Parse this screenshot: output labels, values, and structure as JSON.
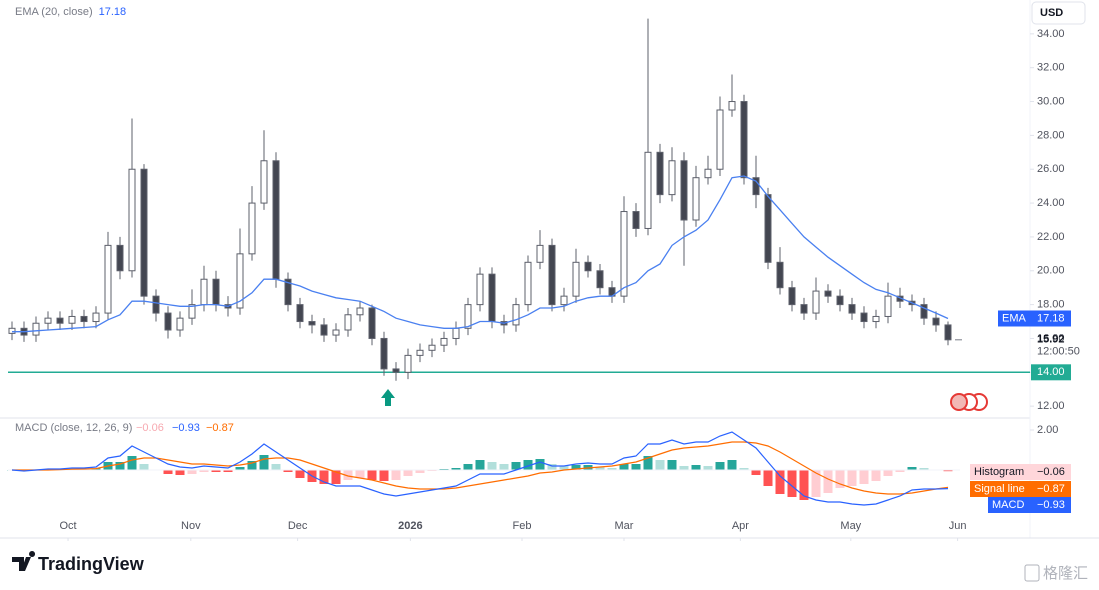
{
  "chart_data": {
    "type": "candlestick",
    "currency": "USD",
    "countdown": "12:00:50",
    "grid": false,
    "xlim": [
      0,
      78
    ],
    "xticks": [
      {
        "value": 4.67,
        "label": "Oct"
      },
      {
        "value": 14.9,
        "label": "Nov"
      },
      {
        "value": 23.8,
        "label": "Dec"
      },
      {
        "value": 33.2,
        "label": "2026"
      },
      {
        "value": 42.5,
        "label": "Feb"
      },
      {
        "value": 51,
        "label": "Mar"
      },
      {
        "value": 60.7,
        "label": "Apr"
      },
      {
        "value": 69.9,
        "label": "May"
      },
      {
        "value": 78.8,
        "label": "Jun"
      }
    ],
    "ylim": [
      11.3,
      36
    ],
    "yticks": [
      {
        "value": 12,
        "label": "12.00"
      },
      {
        "value": 14,
        "label": "14.00"
      },
      {
        "value": 16,
        "label": "16.00"
      },
      {
        "value": 18,
        "label": "18.00"
      },
      {
        "value": 20,
        "label": "20.00"
      },
      {
        "value": 22,
        "label": "22.00"
      },
      {
        "value": 24,
        "label": "24.00"
      },
      {
        "value": 26,
        "label": "26.00"
      },
      {
        "value": 28,
        "label": "28.00"
      },
      {
        "value": 30,
        "label": "30.00"
      },
      {
        "value": 32,
        "label": "32.00"
      },
      {
        "value": 34,
        "label": "34.00"
      }
    ],
    "up_color": "#ffffff",
    "down_color": "#434651",
    "wick_color": "#5d606b",
    "candles": {
      "open": [
        16.3,
        16.6,
        16.2,
        16.9,
        17.2,
        16.9,
        17.3,
        17.0,
        17.5,
        21.5,
        20.0,
        26.0,
        18.5,
        17.5,
        16.5,
        17.2,
        18.0,
        19.5,
        18.0,
        17.8,
        21.0,
        24.0,
        26.5,
        19.5,
        18.0,
        17.0,
        16.8,
        16.2,
        16.5,
        17.4,
        17.8,
        16.0,
        14.2,
        14.0,
        15.0,
        15.3,
        15.6,
        16.0,
        16.6,
        18.0,
        19.8,
        17.0,
        16.8,
        18.0,
        20.5,
        21.5,
        18.0,
        18.5,
        20.5,
        20.0,
        19.0,
        18.5,
        23.5,
        22.5,
        27.0,
        24.5,
        26.5,
        23.0,
        25.5,
        26.0,
        29.5,
        30.0,
        25.5,
        24.5,
        20.5,
        19.0,
        18.0,
        17.5,
        18.8,
        18.5,
        18.0,
        17.5,
        17.0,
        17.3,
        18.5,
        18.2,
        18.0,
        17.2,
        16.8
      ],
      "high": [
        17.0,
        17.0,
        17.3,
        17.6,
        17.6,
        17.7,
        17.7,
        17.9,
        22.3,
        22.0,
        29.0,
        26.3,
        18.9,
        17.9,
        17.6,
        18.9,
        20.3,
        20.0,
        18.5,
        22.5,
        25.0,
        28.3,
        27.0,
        19.9,
        18.4,
        17.4,
        17.2,
        16.9,
        17.8,
        18.2,
        18.0,
        16.4,
        14.6,
        15.4,
        15.7,
        16.0,
        16.4,
        17.0,
        18.4,
        20.2,
        20.2,
        17.4,
        18.4,
        20.9,
        22.4,
        21.9,
        19.0,
        21.3,
        20.9,
        20.4,
        19.4,
        24.4,
        24.0,
        34.9,
        27.5,
        27.3,
        27.0,
        26.2,
        26.8,
        30.3,
        31.6,
        30.4,
        26.8,
        24.9,
        21.4,
        19.4,
        18.4,
        19.6,
        19.2,
        18.9,
        18.4,
        17.9,
        17.7,
        19.3,
        19.0,
        18.6,
        18.4,
        17.6,
        17.0
      ],
      "low": [
        15.9,
        15.8,
        15.8,
        16.5,
        16.5,
        16.5,
        16.6,
        16.6,
        17.1,
        19.5,
        19.6,
        18.0,
        17.0,
        16.0,
        16.1,
        16.8,
        17.6,
        17.6,
        17.3,
        17.4,
        20.6,
        23.6,
        19.0,
        17.6,
        16.6,
        16.3,
        15.8,
        15.8,
        16.1,
        17.0,
        15.6,
        13.8,
        13.5,
        13.6,
        14.6,
        14.9,
        15.2,
        15.6,
        16.2,
        17.6,
        16.6,
        16.3,
        16.4,
        17.6,
        20.1,
        17.6,
        17.6,
        18.1,
        19.6,
        18.6,
        18.1,
        18.1,
        22.0,
        22.1,
        24.0,
        24.1,
        20.3,
        22.6,
        25.1,
        25.6,
        29.1,
        25.1,
        23.7,
        20.1,
        18.6,
        17.6,
        17.1,
        17.1,
        18.1,
        17.6,
        17.1,
        16.6,
        16.6,
        16.9,
        17.8,
        17.6,
        16.8,
        16.4,
        15.6
      ],
      "close": [
        16.6,
        16.2,
        16.9,
        17.2,
        16.9,
        17.3,
        17.0,
        17.5,
        21.5,
        20.0,
        26.0,
        18.5,
        17.5,
        16.5,
        17.2,
        18.0,
        19.5,
        18.0,
        17.8,
        21.0,
        24.0,
        26.5,
        19.5,
        18.0,
        17.0,
        16.8,
        16.2,
        16.5,
        17.4,
        17.8,
        16.0,
        14.2,
        14.0,
        15.0,
        15.3,
        15.6,
        16.0,
        16.6,
        18.0,
        19.8,
        17.0,
        16.8,
        18.0,
        20.5,
        21.5,
        18.0,
        18.5,
        20.5,
        20.0,
        19.0,
        18.5,
        23.5,
        22.5,
        27.0,
        24.5,
        26.5,
        23.0,
        25.5,
        26.0,
        29.5,
        30.0,
        25.5,
        24.5,
        20.5,
        19.0,
        18.0,
        17.5,
        18.8,
        18.5,
        18.0,
        17.5,
        17.0,
        17.3,
        18.5,
        18.2,
        18.0,
        17.2,
        16.8,
        15.92
      ]
    },
    "ema": {
      "name": "EMA",
      "title": "EMA (20, close)",
      "color": "#4a80f0",
      "values": [
        16.4,
        16.4,
        16.45,
        16.5,
        16.55,
        16.6,
        16.65,
        16.7,
        17.1,
        17.4,
        18.2,
        18.2,
        18.1,
        18.0,
        17.9,
        17.9,
        18.0,
        18.0,
        17.9,
        18.2,
        18.7,
        19.5,
        19.5,
        19.3,
        19.1,
        18.8,
        18.6,
        18.4,
        18.3,
        18.2,
        17.9,
        17.6,
        17.2,
        17.0,
        16.8,
        16.7,
        16.6,
        16.6,
        16.7,
        17.0,
        17.0,
        16.9,
        17.1,
        17.4,
        17.8,
        17.8,
        17.9,
        18.2,
        18.4,
        18.5,
        18.5,
        19.0,
        19.3,
        20.0,
        20.4,
        21.5,
        22.0,
        22.4,
        23.0,
        24.2,
        25.5,
        25.6,
        25.3,
        24.4,
        23.6,
        22.8,
        22.0,
        21.4,
        20.8,
        20.3,
        19.8,
        19.3,
        18.9,
        18.7,
        18.4,
        18.1,
        17.8,
        17.5,
        17.18
      ]
    },
    "hline": {
      "value": 14,
      "label": "14.00",
      "color": "#22ab94"
    },
    "macd": {
      "title": "MACD (close, 12, 26, 9)",
      "ylim": [
        -2.6,
        2.5
      ],
      "yticks": [
        {
          "value": 2,
          "label": "2.00"
        }
      ],
      "histogram": {
        "name": "Histogram",
        "last_value_label": "−0.06",
        "colors": [
          "#26a69a",
          "#b2dfdb",
          "#ff5252",
          "#ffcdd2"
        ],
        "values": [
          0.0,
          -0.05,
          0.0,
          0.05,
          0.03,
          0.06,
          0.05,
          0.08,
          0.4,
          0.4,
          0.7,
          0.3,
          0.0,
          -0.2,
          -0.25,
          -0.2,
          -0.1,
          -0.1,
          -0.1,
          0.15,
          0.45,
          0.75,
          0.3,
          -0.1,
          -0.4,
          -0.6,
          -0.7,
          -0.7,
          -0.5,
          -0.4,
          -0.5,
          -0.55,
          -0.5,
          -0.3,
          -0.15,
          -0.05,
          0.05,
          0.1,
          0.3,
          0.5,
          0.4,
          0.3,
          0.4,
          0.5,
          0.55,
          0.3,
          0.2,
          0.25,
          0.25,
          0.15,
          0.1,
          0.3,
          0.3,
          0.7,
          0.5,
          0.5,
          0.2,
          0.25,
          0.2,
          0.4,
          0.5,
          0.1,
          -0.25,
          -0.8,
          -1.2,
          -1.35,
          -1.5,
          -1.35,
          -1.15,
          -0.9,
          -0.8,
          -0.7,
          -0.55,
          -0.3,
          -0.1,
          0.15,
          0.1,
          0.0,
          -0.06
        ]
      },
      "signal": {
        "name": "Signal line",
        "color": "#ff6d00",
        "last_value_label": "−0.87",
        "values": [
          0.0,
          0.0,
          0.0,
          0.0,
          0.02,
          0.04,
          0.05,
          0.07,
          0.2,
          0.3,
          0.5,
          0.6,
          0.6,
          0.5,
          0.4,
          0.3,
          0.3,
          0.25,
          0.2,
          0.25,
          0.35,
          0.55,
          0.6,
          0.6,
          0.5,
          0.3,
          0.1,
          -0.1,
          -0.3,
          -0.4,
          -0.5,
          -0.65,
          -0.8,
          -0.9,
          -0.95,
          -0.95,
          -0.95,
          -0.9,
          -0.8,
          -0.7,
          -0.6,
          -0.5,
          -0.4,
          -0.3,
          -0.15,
          -0.1,
          0.0,
          0.05,
          0.1,
          0.15,
          0.2,
          0.3,
          0.4,
          0.6,
          0.8,
          1.0,
          1.1,
          1.15,
          1.2,
          1.3,
          1.4,
          1.4,
          1.35,
          1.2,
          0.9,
          0.55,
          0.2,
          -0.15,
          -0.45,
          -0.7,
          -0.9,
          -1.05,
          -1.15,
          -1.2,
          -1.2,
          -1.15,
          -1.05,
          -0.95,
          -0.87
        ]
      },
      "macd": {
        "name": "MACD",
        "color": "#2962ff",
        "last_value_label": "−0.93",
        "values": [
          0.0,
          -0.05,
          0.0,
          0.05,
          0.05,
          0.1,
          0.1,
          0.15,
          0.6,
          0.7,
          1.2,
          0.9,
          0.6,
          0.3,
          0.15,
          0.1,
          0.2,
          0.15,
          0.1,
          0.4,
          0.8,
          1.3,
          0.9,
          0.5,
          0.1,
          -0.3,
          -0.6,
          -0.8,
          -0.8,
          -0.8,
          -1.0,
          -1.2,
          -1.3,
          -1.2,
          -1.1,
          -1.0,
          -0.9,
          -0.8,
          -0.5,
          -0.2,
          -0.2,
          -0.2,
          0.0,
          0.2,
          0.4,
          0.2,
          0.2,
          0.3,
          0.35,
          0.3,
          0.3,
          0.6,
          0.7,
          1.3,
          1.3,
          1.5,
          1.3,
          1.4,
          1.4,
          1.7,
          1.9,
          1.5,
          1.1,
          0.4,
          -0.3,
          -0.8,
          -1.3,
          -1.5,
          -1.6,
          -1.6,
          -1.7,
          -1.75,
          -1.7,
          -1.5,
          -1.3,
          -1.0,
          -0.95,
          -0.95,
          -0.93
        ]
      }
    }
  },
  "footer": {
    "brand": "TradingView",
    "watermark": "格隆汇"
  }
}
